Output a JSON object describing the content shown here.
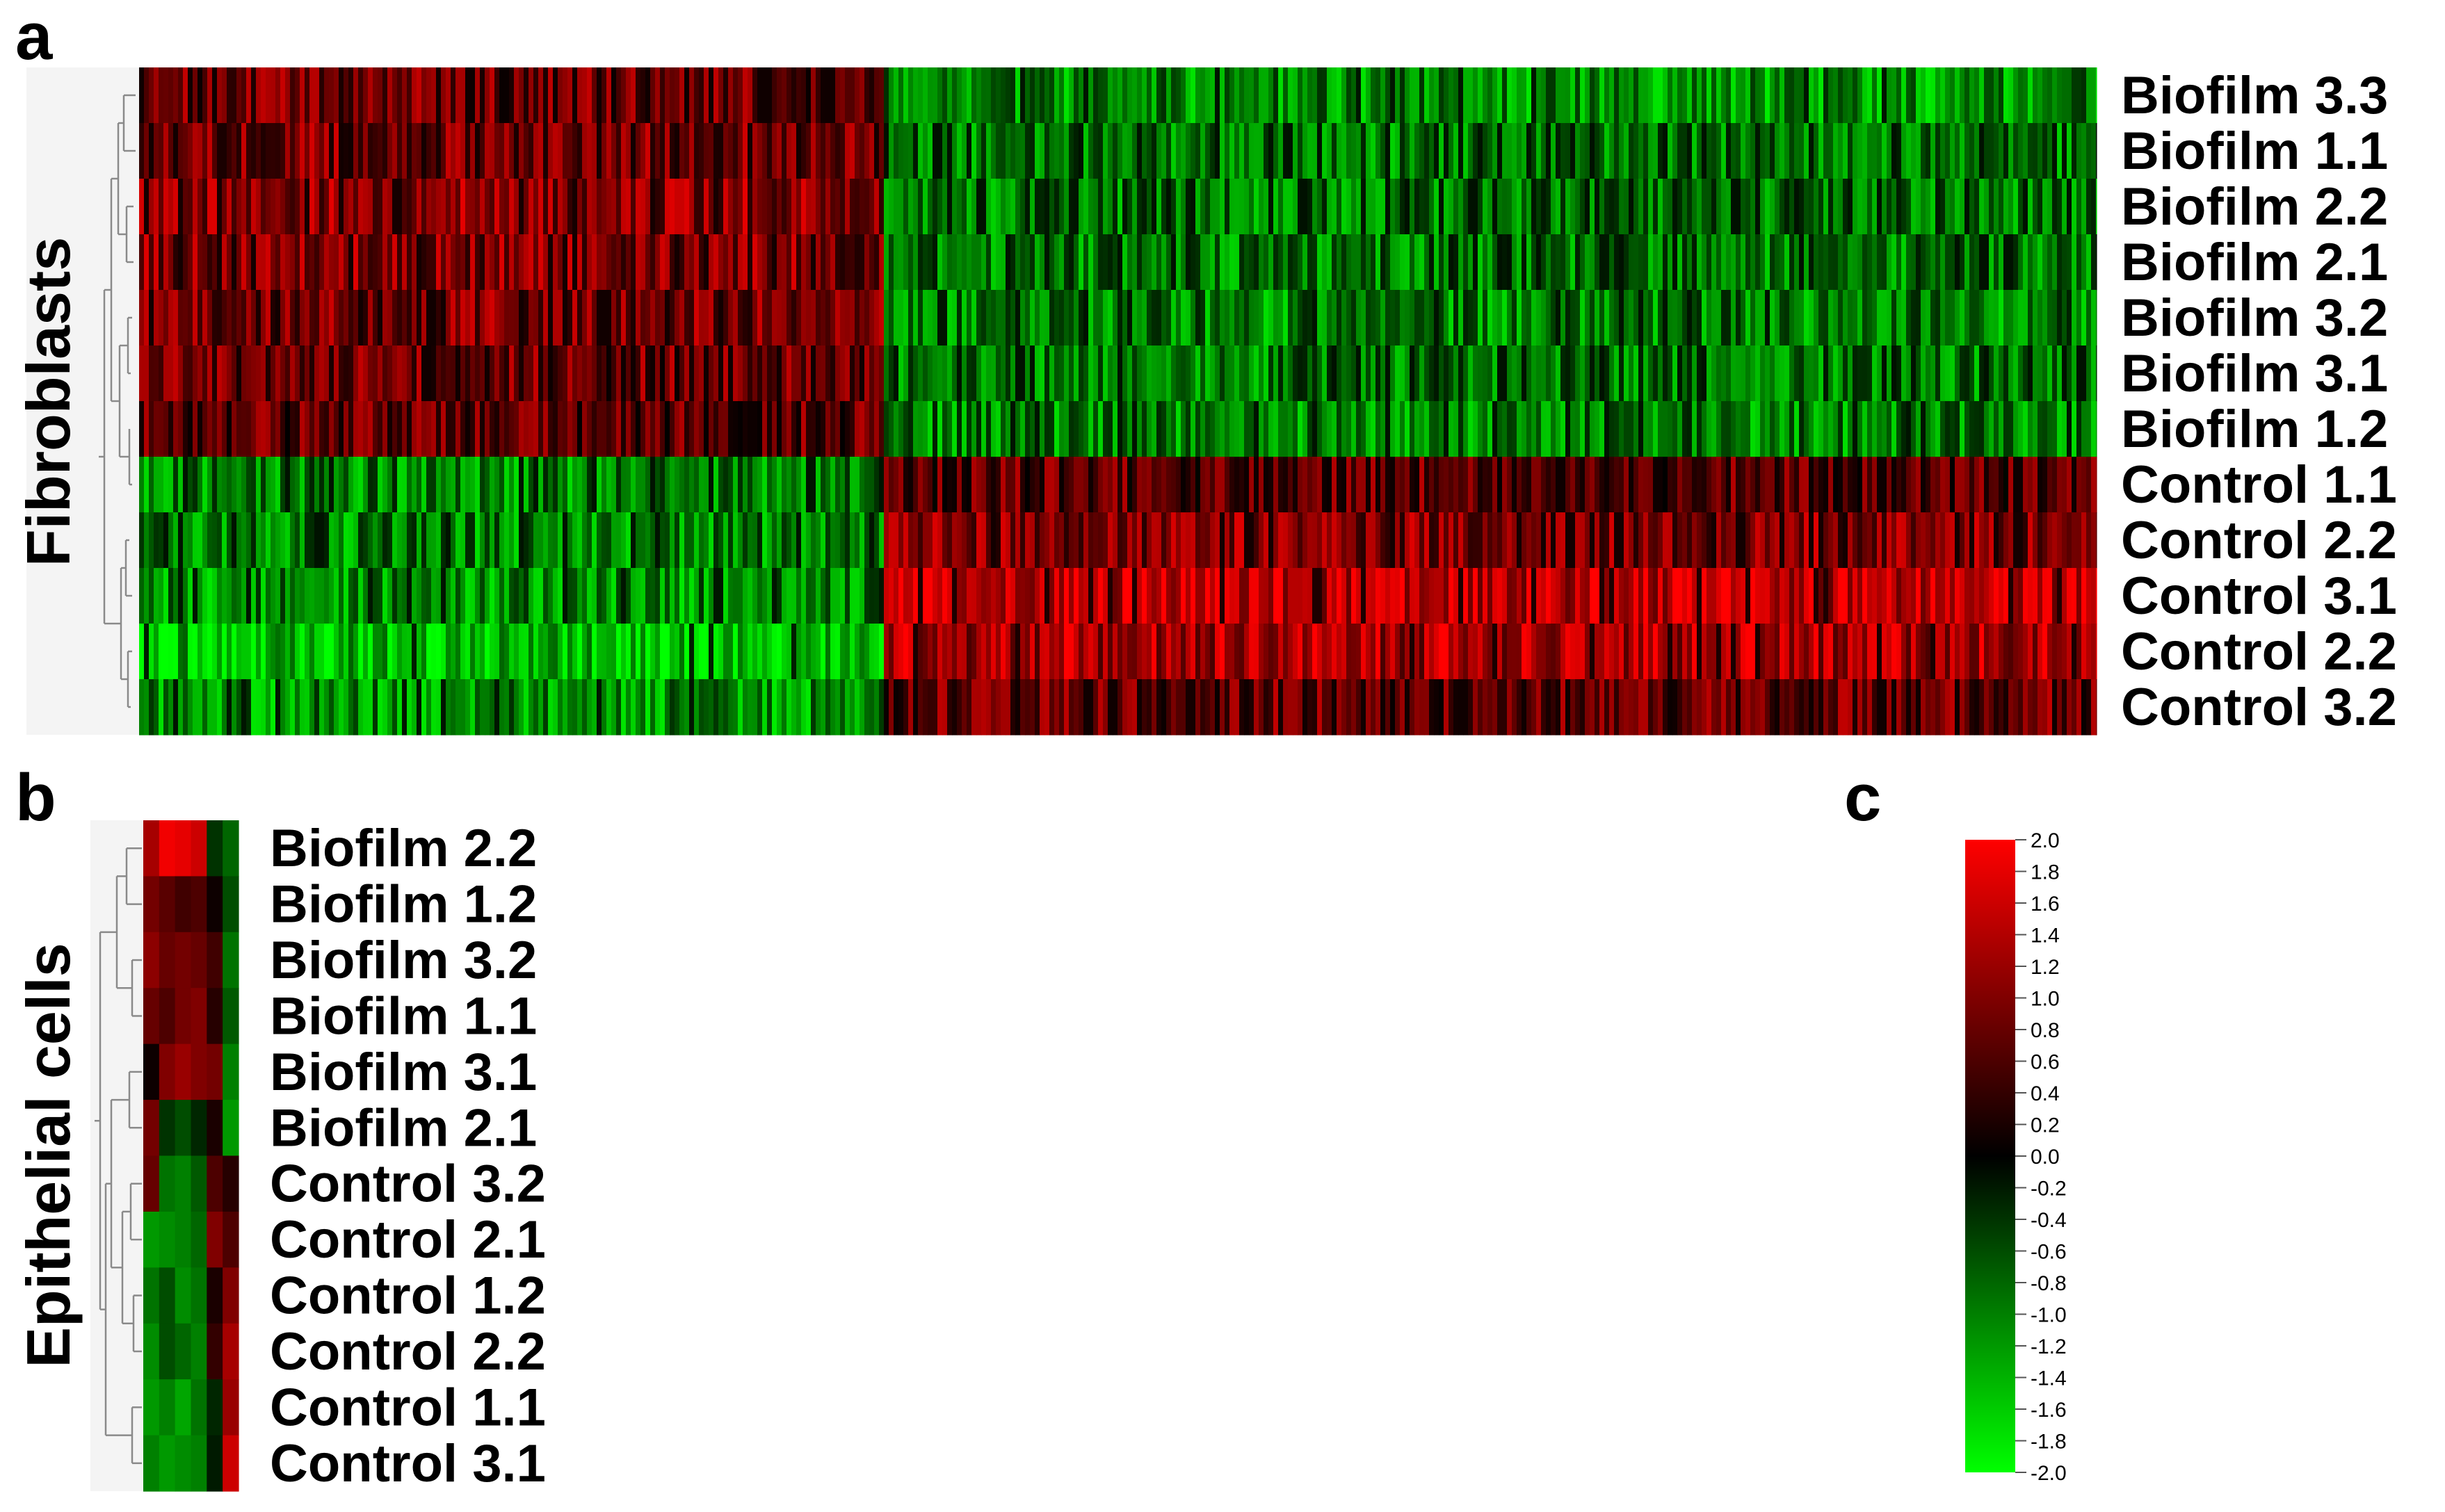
{
  "panels": [
    {
      "letter": "a"
    },
    {
      "letter": "b"
    },
    {
      "letter": "c"
    }
  ],
  "chart_data": [
    {
      "type": "heatmap",
      "panel": "a",
      "ylabel": "Fibroblasts",
      "rows": [
        "Biofilm 3.3",
        "Biofilm 1.1",
        "Biofilm 2.2",
        "Biofilm 2.1",
        "Biofilm 3.2",
        "Biofilm 3.1",
        "Biofilm 1.2",
        "Control 1.1",
        "Control 2.2",
        "Control 3.1",
        "Control 2.2",
        "Control 3.2"
      ],
      "cluster_columns": 2,
      "column_split_fraction": 0.378,
      "cluster_means": [
        [
          0.8,
          -1.1
        ],
        [
          0.9,
          -0.9
        ],
        [
          1.1,
          -0.9
        ],
        [
          1.0,
          -0.9
        ],
        [
          0.9,
          -1.0
        ],
        [
          0.8,
          -0.9
        ],
        [
          0.7,
          -1.0
        ],
        [
          -1.0,
          0.7
        ],
        [
          -1.0,
          1.0
        ],
        [
          -1.1,
          1.5
        ],
        [
          -1.5,
          1.3
        ],
        [
          -1.1,
          0.8
        ]
      ],
      "value_range": [
        -2.0,
        2.0
      ]
    },
    {
      "type": "heatmap",
      "panel": "b",
      "ylabel": "Epithelial cells",
      "rows": [
        "Biofilm 2.2",
        "Biofilm 1.2",
        "Biofilm 3.2",
        "Biofilm 1.1",
        "Biofilm 3.1",
        "Biofilm 2.1",
        "Control 3.2",
        "Control 2.1",
        "Control 1.2",
        "Control 2.2",
        "Control 1.1",
        "Control 3.1"
      ],
      "column_values": [
        [
          1.3,
          1.9,
          1.8,
          1.6,
          -0.4,
          -0.8
        ],
        [
          0.9,
          0.7,
          0.5,
          0.6,
          0.1,
          -0.6
        ],
        [
          1.1,
          0.8,
          0.9,
          0.8,
          0.5,
          -0.9
        ],
        [
          0.8,
          0.6,
          0.9,
          1.0,
          0.3,
          -0.7
        ],
        [
          0.1,
          1.0,
          1.2,
          1.0,
          0.9,
          -1.0
        ],
        [
          0.9,
          -0.4,
          -0.6,
          -0.3,
          0.2,
          -1.2
        ],
        [
          0.8,
          -0.9,
          -1.0,
          -0.7,
          0.6,
          0.3
        ],
        [
          -1.2,
          -1.1,
          -1.0,
          -0.8,
          1.0,
          0.6
        ],
        [
          -0.9,
          -0.6,
          -1.1,
          -0.9,
          0.2,
          1.0
        ],
        [
          -1.1,
          -0.6,
          -0.8,
          -1.0,
          0.4,
          1.3
        ],
        [
          -1.2,
          -1.0,
          -1.3,
          -0.9,
          -0.3,
          1.2
        ],
        [
          -1.0,
          -1.2,
          -1.1,
          -1.0,
          -0.2,
          1.6
        ]
      ],
      "value_range": [
        -2.0,
        2.0
      ]
    },
    {
      "type": "colorbar",
      "panel": "c",
      "ticks": [
        "2.0",
        "1.8",
        "1.6",
        "1.4",
        "1.2",
        "1.0",
        "0.8",
        "0.6",
        "0.4",
        "0.2",
        "0.0",
        "-0.2",
        "-0.4",
        "-0.6",
        "-0.8",
        "-1.0",
        "-1.2",
        "-1.4",
        "-1.6",
        "-1.8",
        "-2.0"
      ],
      "ylim": [
        -2.0,
        2.0
      ],
      "colors": {
        "high": "#ff0000",
        "mid": "#000000",
        "low": "#00ff00"
      }
    }
  ]
}
